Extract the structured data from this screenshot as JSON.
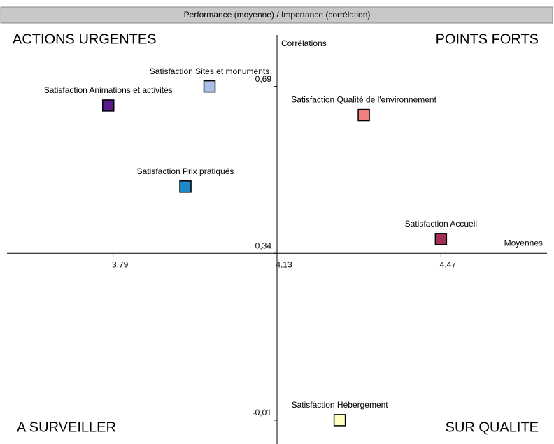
{
  "chart_data": {
    "type": "scatter",
    "title": "Performance (moyenne) / Importance (corrélation)",
    "x_label": "Moyennes",
    "y_label": "Corrélations",
    "annotations": [
      "ACTIONS URGENTES",
      "POINTS FORTS",
      "A SURVEILLER",
      "SUR QUALITE"
    ],
    "xlim": [
      3.57,
      4.69
    ],
    "xticks": [
      {
        "value": 3.79,
        "label": "3,79"
      },
      {
        "value": 4.13,
        "label": "4,13"
      },
      {
        "value": 4.47,
        "label": "4,47"
      }
    ],
    "ylim": [
      -0.06,
      0.82
    ],
    "yticks": [
      {
        "value": -0.01,
        "label": "-0,01"
      },
      {
        "value": 0.34,
        "label": "0,34"
      },
      {
        "value": 0.69,
        "label": "0,69"
      }
    ],
    "series": [
      {
        "name": "Satisfaction Sites et monuments",
        "color": "#a8c0e8",
        "x": [
          3.99
        ],
        "values": [
          0.69
        ]
      },
      {
        "name": "Satisfaction Animations et activités",
        "color": "#5a1a8a",
        "x": [
          3.78
        ],
        "values": [
          0.65
        ]
      },
      {
        "name": "Satisfaction Qualité de l'environnement",
        "color": "#f08080",
        "x": [
          4.31
        ],
        "values": [
          0.63
        ]
      },
      {
        "name": "Satisfaction Prix pratiqués",
        "color": "#1e88c8",
        "x": [
          3.94
        ],
        "values": [
          0.48
        ]
      },
      {
        "name": "Satisfaction Accueil",
        "color": "#a0305a",
        "x": [
          4.47
        ],
        "values": [
          0.37
        ]
      },
      {
        "name": "Satisfaction Hébergement",
        "color": "#ffffc0",
        "x": [
          4.26
        ],
        "values": [
          -0.01
        ]
      }
    ]
  }
}
